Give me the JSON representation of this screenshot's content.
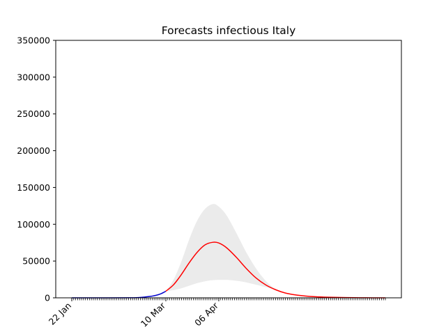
{
  "chart_data": {
    "type": "line",
    "title": "Forecasts infectious Italy",
    "xlabel": "",
    "ylabel": "",
    "x_axis": {
      "type": "date",
      "start": "2020-01-22",
      "end": "2020-06-30",
      "tick_labels": [
        {
          "date": "2020-01-22",
          "label": "22 Jan"
        },
        {
          "date": "2020-03-10",
          "label": "10 Mar"
        },
        {
          "date": "2020-04-06",
          "label": "06 Apr"
        }
      ],
      "minor_ticks": "daily"
    },
    "ylim": [
      0,
      350000
    ],
    "yticks": [
      0,
      50000,
      100000,
      150000,
      200000,
      250000,
      300000,
      350000
    ],
    "grid": false,
    "series": [
      {
        "kind": "line",
        "color": "#0000cc",
        "points": [
          [
            "2020-01-22",
            0
          ],
          [
            "2020-02-10",
            0
          ],
          [
            "2020-02-20",
            100
          ],
          [
            "2020-02-25",
            400
          ],
          [
            "2020-02-28",
            1000
          ],
          [
            "2020-03-01",
            1700
          ],
          [
            "2020-03-03",
            2300
          ],
          [
            "2020-03-05",
            3400
          ],
          [
            "2020-03-07",
            5000
          ],
          [
            "2020-03-09",
            7500
          ],
          [
            "2020-03-10",
            9000
          ]
        ]
      },
      {
        "kind": "line",
        "color": "#ff0000",
        "points": [
          [
            "2020-03-10",
            9000
          ],
          [
            "2020-03-14",
            18000
          ],
          [
            "2020-03-18",
            32000
          ],
          [
            "2020-03-22",
            48000
          ],
          [
            "2020-03-26",
            62000
          ],
          [
            "2020-03-30",
            72000
          ],
          [
            "2020-04-03",
            75500
          ],
          [
            "2020-04-06",
            74500
          ],
          [
            "2020-04-10",
            68000
          ],
          [
            "2020-04-15",
            55000
          ],
          [
            "2020-04-20",
            40000
          ],
          [
            "2020-04-25",
            27000
          ],
          [
            "2020-04-30",
            17500
          ],
          [
            "2020-05-05",
            11000
          ],
          [
            "2020-05-10",
            6500
          ],
          [
            "2020-05-15",
            4000
          ],
          [
            "2020-05-20",
            2500
          ],
          [
            "2020-05-25",
            1500
          ],
          [
            "2020-06-01",
            800
          ],
          [
            "2020-06-10",
            300
          ],
          [
            "2020-06-20",
            100
          ],
          [
            "2020-06-30",
            0
          ]
        ]
      },
      {
        "kind": "band",
        "color": "#ebebeb",
        "upper": [
          [
            "2020-03-10",
            9000
          ],
          [
            "2020-03-14",
            25000
          ],
          [
            "2020-03-18",
            50000
          ],
          [
            "2020-03-22",
            80000
          ],
          [
            "2020-03-26",
            105000
          ],
          [
            "2020-03-30",
            121000
          ],
          [
            "2020-04-03",
            127500
          ],
          [
            "2020-04-06",
            124000
          ],
          [
            "2020-04-10",
            112000
          ],
          [
            "2020-04-15",
            88000
          ],
          [
            "2020-04-20",
            62000
          ],
          [
            "2020-04-25",
            40000
          ],
          [
            "2020-04-30",
            23000
          ],
          [
            "2020-05-05",
            12000
          ],
          [
            "2020-05-10",
            6500
          ],
          [
            "2020-05-15",
            4000
          ],
          [
            "2020-05-20",
            2500
          ],
          [
            "2020-05-25",
            1500
          ],
          [
            "2020-06-01",
            800
          ],
          [
            "2020-06-10",
            300
          ],
          [
            "2020-06-20",
            100
          ],
          [
            "2020-06-30",
            0
          ]
        ],
        "lower": [
          [
            "2020-03-10",
            9000
          ],
          [
            "2020-03-14",
            10500
          ],
          [
            "2020-03-18",
            13000
          ],
          [
            "2020-03-22",
            16500
          ],
          [
            "2020-03-26",
            20000
          ],
          [
            "2020-03-30",
            22500
          ],
          [
            "2020-04-03",
            24000
          ],
          [
            "2020-04-08",
            24500
          ],
          [
            "2020-04-12",
            24000
          ],
          [
            "2020-04-18",
            22000
          ],
          [
            "2020-04-24",
            18500
          ],
          [
            "2020-04-30",
            14500
          ],
          [
            "2020-05-05",
            11000
          ],
          [
            "2020-05-10",
            6500
          ],
          [
            "2020-05-15",
            4000
          ],
          [
            "2020-05-20",
            2500
          ],
          [
            "2020-05-25",
            1500
          ],
          [
            "2020-06-01",
            800
          ],
          [
            "2020-06-10",
            300
          ],
          [
            "2020-06-20",
            100
          ],
          [
            "2020-06-30",
            0
          ]
        ]
      }
    ]
  }
}
